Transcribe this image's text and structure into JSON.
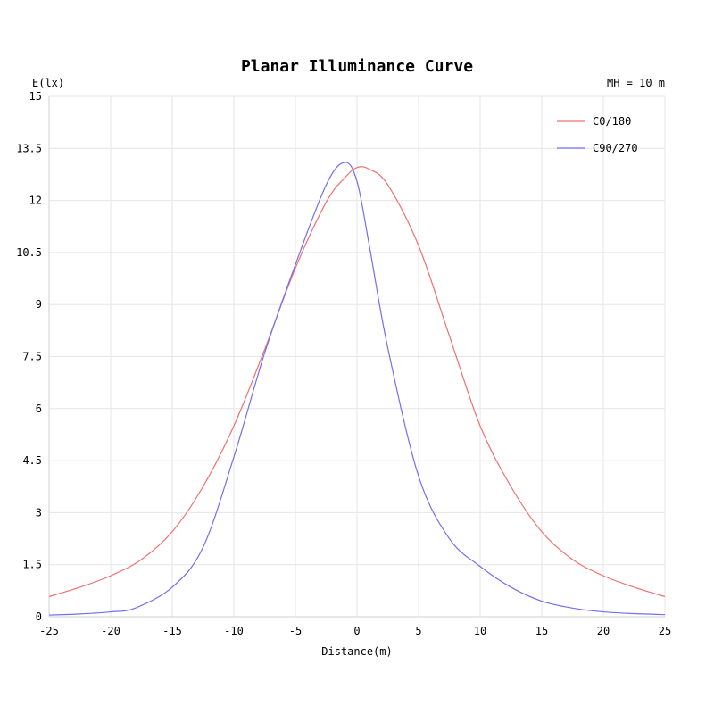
{
  "chart_data": {
    "type": "line",
    "title": "Planar Illuminance Curve",
    "ylabel": "E(lx)",
    "xlabel": "Distance(m)",
    "annotation": "MH = 10 m",
    "xlim": [
      -25,
      25
    ],
    "ylim": [
      0,
      15
    ],
    "x_ticks": [
      -25,
      -20,
      -15,
      -10,
      -5,
      0,
      5,
      10,
      15,
      20,
      25
    ],
    "y_ticks": [
      "0",
      "1.5",
      "3",
      "4.5",
      "6",
      "7.5",
      "9",
      "10.5",
      "12",
      "13.5",
      "15"
    ],
    "grid": true,
    "legend_position": "top-right",
    "series": [
      {
        "name": "C0/180",
        "color": "#f07070",
        "points": [
          [
            -25,
            0.58
          ],
          [
            -22.5,
            0.85
          ],
          [
            -20,
            1.18
          ],
          [
            -17.5,
            1.65
          ],
          [
            -15,
            2.45
          ],
          [
            -12.5,
            3.75
          ],
          [
            -10,
            5.5
          ],
          [
            -7.5,
            7.7
          ],
          [
            -5,
            10.05
          ],
          [
            -2.5,
            11.95
          ],
          [
            -1,
            12.65
          ],
          [
            0,
            12.95
          ],
          [
            1,
            12.9
          ],
          [
            2.5,
            12.45
          ],
          [
            5,
            10.7
          ],
          [
            7.5,
            8.1
          ],
          [
            10,
            5.5
          ],
          [
            12.5,
            3.75
          ],
          [
            15,
            2.45
          ],
          [
            17.5,
            1.65
          ],
          [
            20,
            1.18
          ],
          [
            22.5,
            0.85
          ],
          [
            25,
            0.58
          ]
        ]
      },
      {
        "name": "C90/270",
        "color": "#7070f0",
        "points": [
          [
            -25,
            0.05
          ],
          [
            -22.5,
            0.08
          ],
          [
            -20,
            0.14
          ],
          [
            -18,
            0.25
          ],
          [
            -15,
            0.85
          ],
          [
            -12.5,
            2.0
          ],
          [
            -10,
            4.6
          ],
          [
            -7.5,
            7.6
          ],
          [
            -5,
            10.15
          ],
          [
            -2.5,
            12.45
          ],
          [
            -1,
            13.1
          ],
          [
            0,
            12.55
          ],
          [
            1,
            10.7
          ],
          [
            2.5,
            7.75
          ],
          [
            5,
            4.05
          ],
          [
            7.5,
            2.25
          ],
          [
            10,
            1.45
          ],
          [
            12.5,
            0.85
          ],
          [
            15,
            0.45
          ],
          [
            17.5,
            0.25
          ],
          [
            20,
            0.14
          ],
          [
            22.5,
            0.09
          ],
          [
            25,
            0.06
          ]
        ]
      }
    ]
  }
}
